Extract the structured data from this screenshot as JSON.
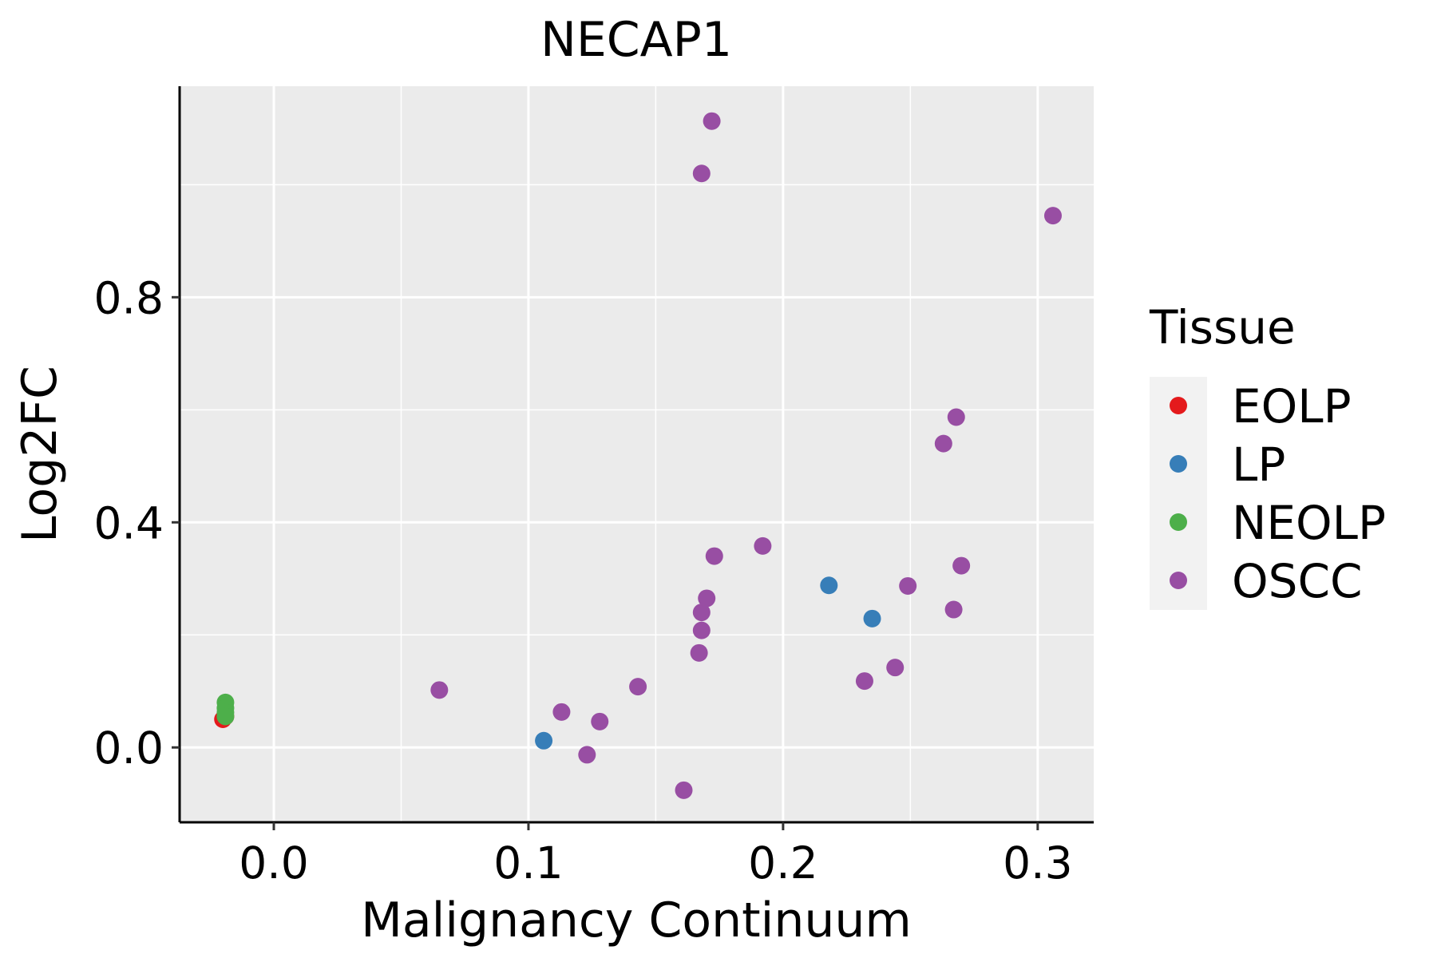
{
  "chart_data": {
    "type": "scatter",
    "title": "NECAP1",
    "xlabel": "Malignancy Continuum",
    "ylabel": "Log2FC",
    "xlim": [
      -0.037,
      0.322
    ],
    "ylim": [
      -0.133,
      1.175
    ],
    "xticks": [
      0.0,
      0.1,
      0.2,
      0.3
    ],
    "xtick_labels": [
      "0.0",
      "0.1",
      "0.2",
      "0.3"
    ],
    "yticks": [
      0.0,
      0.4,
      0.8
    ],
    "ytick_labels": [
      "0.0",
      "0.4",
      "0.8"
    ],
    "grid": true,
    "legend": {
      "title": "Tissue",
      "position": "right"
    },
    "series": [
      {
        "name": "EOLP",
        "color": "#E41A1C",
        "points": [
          {
            "x": -0.02,
            "y": 0.05
          },
          {
            "x": -0.019,
            "y": 0.055
          }
        ]
      },
      {
        "name": "LP",
        "color": "#377EB8",
        "points": [
          {
            "x": 0.106,
            "y": 0.012
          },
          {
            "x": 0.218,
            "y": 0.288
          },
          {
            "x": 0.235,
            "y": 0.229
          }
        ]
      },
      {
        "name": "NEOLP",
        "color": "#4DAF4A",
        "points": [
          {
            "x": -0.019,
            "y": 0.08
          },
          {
            "x": -0.019,
            "y": 0.07
          },
          {
            "x": -0.019,
            "y": 0.062
          },
          {
            "x": -0.019,
            "y": 0.055
          }
        ]
      },
      {
        "name": "OSCC",
        "color": "#984EA3",
        "points": [
          {
            "x": 0.065,
            "y": 0.102
          },
          {
            "x": 0.113,
            "y": 0.063
          },
          {
            "x": 0.123,
            "y": -0.013
          },
          {
            "x": 0.128,
            "y": 0.046
          },
          {
            "x": 0.143,
            "y": 0.108
          },
          {
            "x": 0.161,
            "y": -0.076
          },
          {
            "x": 0.167,
            "y": 0.168
          },
          {
            "x": 0.168,
            "y": 0.208
          },
          {
            "x": 0.168,
            "y": 0.24
          },
          {
            "x": 0.17,
            "y": 0.265
          },
          {
            "x": 0.173,
            "y": 0.34
          },
          {
            "x": 0.168,
            "y": 1.02
          },
          {
            "x": 0.172,
            "y": 1.113
          },
          {
            "x": 0.192,
            "y": 0.358
          },
          {
            "x": 0.232,
            "y": 0.118
          },
          {
            "x": 0.244,
            "y": 0.142
          },
          {
            "x": 0.249,
            "y": 0.287
          },
          {
            "x": 0.263,
            "y": 0.54
          },
          {
            "x": 0.267,
            "y": 0.245
          },
          {
            "x": 0.268,
            "y": 0.587
          },
          {
            "x": 0.27,
            "y": 0.323
          },
          {
            "x": 0.306,
            "y": 0.945
          }
        ]
      }
    ]
  }
}
